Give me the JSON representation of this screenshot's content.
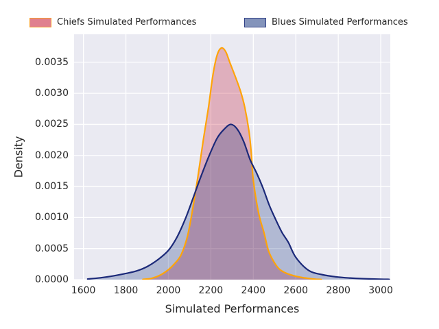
{
  "legend": {
    "position": "top",
    "items": [
      {
        "label": "Chiefs Simulated Performances"
      },
      {
        "label": "Blues Simulated Performances"
      }
    ]
  },
  "chart_data": {
    "type": "area",
    "subtype": "kde-density",
    "title": "",
    "xlabel": "Simulated Performances",
    "ylabel": "Density",
    "xlim": [
      1556,
      3045
    ],
    "ylim": [
      0,
      0.00395
    ],
    "x_ticks": [
      1600,
      1800,
      2000,
      2200,
      2400,
      2600,
      2800,
      3000
    ],
    "y_tick_labels": [
      "0.0000",
      "0.0005",
      "0.0010",
      "0.0015",
      "0.0020",
      "0.0025",
      "0.0030",
      "0.0035"
    ],
    "grid": true,
    "plot_background": "#eaeaf2",
    "grid_color": "#ffffff",
    "text_color": "#262626",
    "legend_position": "above-axes",
    "series": [
      {
        "name": "Chiefs Simulated Performances",
        "line_color": "#ffa408",
        "fill_color": "rgba(193,1,31,0.25)",
        "swatch_fill": "rgba(193,1,31,0.5)",
        "swatch_border": "rgba(255,164,10,0.8)",
        "peak": {
          "x": 2250,
          "density": 0.00373
        },
        "points": [
          [
            1880,
            5e-06
          ],
          [
            1920,
            2e-05
          ],
          [
            1960,
            7e-05
          ],
          [
            2000,
            0.00016
          ],
          [
            2030,
            0.00026
          ],
          [
            2060,
            0.0004
          ],
          [
            2090,
            0.0007
          ],
          [
            2115,
            0.00115
          ],
          [
            2140,
            0.00168
          ],
          [
            2165,
            0.00226
          ],
          [
            2190,
            0.0028
          ],
          [
            2210,
            0.0033
          ],
          [
            2230,
            0.00362
          ],
          [
            2250,
            0.00373
          ],
          [
            2270,
            0.00367
          ],
          [
            2290,
            0.00349
          ],
          [
            2315,
            0.00327
          ],
          [
            2340,
            0.00303
          ],
          [
            2360,
            0.00277
          ],
          [
            2380,
            0.00238
          ],
          [
            2390,
            0.00205
          ],
          [
            2400,
            0.0016
          ],
          [
            2425,
            0.00107
          ],
          [
            2450,
            0.00076
          ],
          [
            2472,
            0.00046
          ],
          [
            2500,
            0.00027
          ],
          [
            2526,
            0.00016
          ],
          [
            2565,
            9e-05
          ],
          [
            2620,
            4e-05
          ],
          [
            2685,
            1e-05
          ],
          [
            2720,
            3e-06
          ]
        ]
      },
      {
        "name": "Blues Simulated Performances",
        "line_color": "#1b2979",
        "fill_color": "rgba(9,41,119,0.25)",
        "swatch_fill": "rgba(9,41,119,0.5)",
        "swatch_border": "rgba(27,41,121,0.8)",
        "peak": {
          "x": 2295,
          "density": 0.0025
        },
        "points": [
          [
            1620,
            1e-05
          ],
          [
            1680,
            3e-05
          ],
          [
            1740,
            6e-05
          ],
          [
            1800,
            0.0001
          ],
          [
            1850,
            0.00014
          ],
          [
            1900,
            0.00021
          ],
          [
            1950,
            0.00032
          ],
          [
            2000,
            0.00047
          ],
          [
            2040,
            0.00068
          ],
          [
            2080,
            0.00098
          ],
          [
            2115,
            0.0013
          ],
          [
            2150,
            0.00163
          ],
          [
            2190,
            0.00198
          ],
          [
            2230,
            0.00228
          ],
          [
            2265,
            0.00243
          ],
          [
            2295,
            0.0025
          ],
          [
            2325,
            0.00242
          ],
          [
            2355,
            0.00222
          ],
          [
            2385,
            0.00193
          ],
          [
            2415,
            0.00172
          ],
          [
            2445,
            0.00148
          ],
          [
            2475,
            0.0012
          ],
          [
            2505,
            0.00097
          ],
          [
            2535,
            0.00076
          ],
          [
            2565,
            0.0006
          ],
          [
            2600,
            0.00036
          ],
          [
            2660,
            0.00015
          ],
          [
            2725,
            8e-05
          ],
          [
            2790,
            4.5e-05
          ],
          [
            2855,
            2.6e-05
          ],
          [
            2920,
            1.5e-05
          ],
          [
            3000,
            7e-06
          ],
          [
            3040,
            5e-06
          ]
        ]
      }
    ]
  }
}
